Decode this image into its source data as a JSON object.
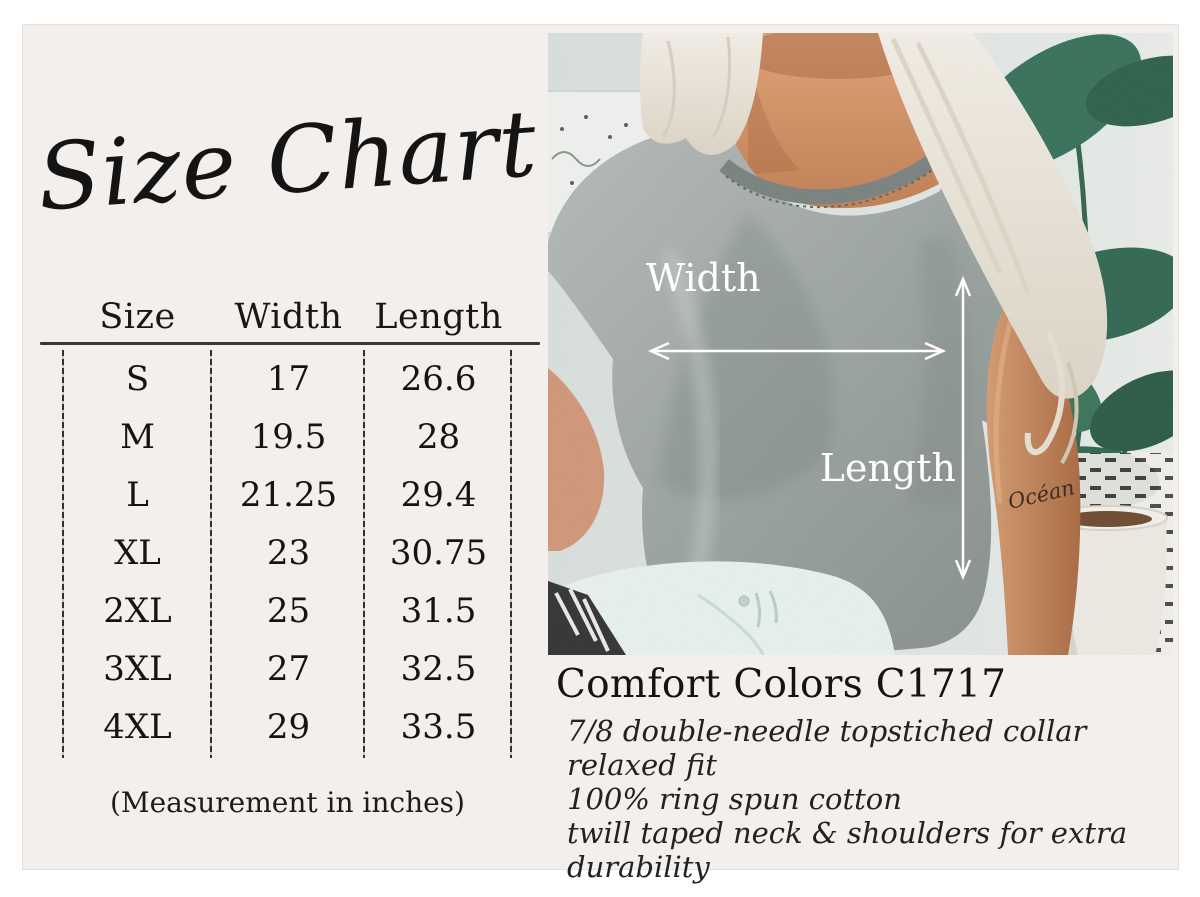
{
  "title": "Size Chart",
  "chart_data": {
    "type": "table",
    "title": "Size Chart",
    "columns": [
      "Size",
      "Width",
      "Length"
    ],
    "rows": [
      [
        "S",
        17,
        26.6
      ],
      [
        "M",
        19.5,
        28
      ],
      [
        "L",
        21.25,
        29.4
      ],
      [
        "XL",
        23,
        30.75
      ],
      [
        "2XL",
        25,
        31.5
      ],
      [
        "3XL",
        27,
        32.5
      ],
      [
        "4XL",
        29,
        33.5
      ]
    ],
    "note": "(Measurement in inches)",
    "units": "inches"
  },
  "photo": {
    "width_label": "Width",
    "length_label": "Length",
    "tattoo_text": "Océan"
  },
  "product": {
    "name": "Comfort Colors C1717",
    "features": [
      "7/8 double-needle topstiched collar",
      "relaxed fit",
      "100% ring spun cotton",
      "twill taped neck & shoulders for extra durability"
    ]
  },
  "colors": {
    "page_background": "#ffffff",
    "panel_background": "#f3efec",
    "ink": "#1a1a1a",
    "annotation": "#ffffff",
    "shirt_gray": "#9ba3a0",
    "leaf_green": "#336a53",
    "wall": "#dfe4e2",
    "skin": "#c98e66",
    "jeans": "#e4efeb"
  }
}
